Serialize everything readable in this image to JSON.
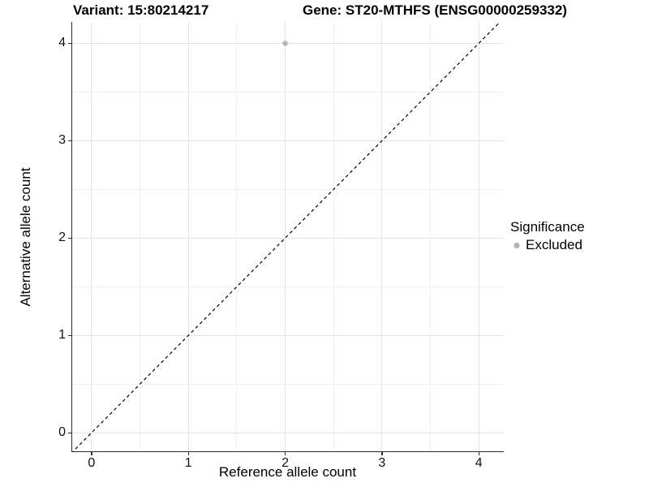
{
  "titles": {
    "variant": "Variant: 15:80214217",
    "gene": "Gene: ST20-MTHFS (ENSG00000259332)"
  },
  "chart_data": {
    "type": "scatter",
    "xlabel": "Reference allele count",
    "ylabel": "Alternative allele count",
    "x_ticks": [
      0,
      1,
      2,
      3,
      4
    ],
    "y_ticks": [
      0,
      1,
      2,
      3,
      4
    ],
    "x_minor": [
      0.5,
      1.5,
      2.5,
      3.5
    ],
    "y_minor": [
      0.5,
      1.5,
      2.5,
      3.5
    ],
    "xlim": [
      -0.2,
      4.25
    ],
    "ylim": [
      -0.19,
      4.22
    ],
    "grid": "major+minor",
    "series": [
      {
        "name": "Excluded",
        "color": "#b3b3b3",
        "points": [
          {
            "x": 2,
            "y": 4
          }
        ]
      }
    ],
    "reference_line": {
      "kind": "identity",
      "slope": 1,
      "intercept": 0,
      "style": "dashed",
      "color": "#000000"
    },
    "legend": {
      "position": "right",
      "title": "Significance",
      "entries": [
        {
          "label": "Excluded",
          "color": "#b3b3b3",
          "marker": "circle"
        }
      ]
    }
  },
  "colors": {
    "background": "#ffffff",
    "grid_major": "#e4e4e4",
    "grid_minor": "#f1f1f1",
    "axis_line": "#2b2b2b",
    "tick_mark": "#333333",
    "point": "#b3b3b3",
    "text": "#000000"
  }
}
